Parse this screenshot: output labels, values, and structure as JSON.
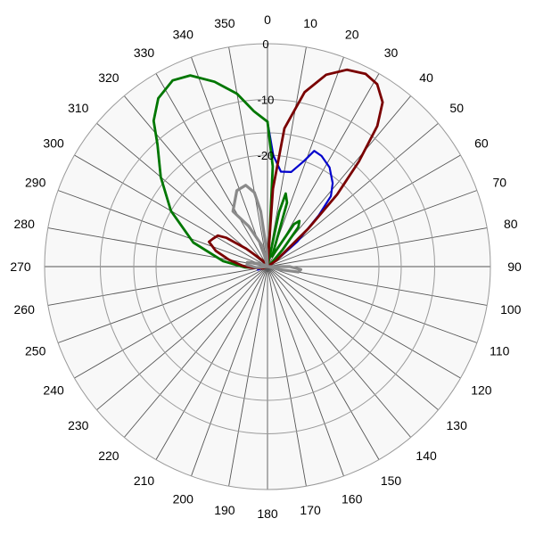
{
  "chart_data": {
    "type": "polar-line",
    "title": "",
    "angle_direction": "clockwise",
    "zero_at": "top",
    "angle_step": 10,
    "angle_labels": [
      "0",
      "10",
      "20",
      "30",
      "40",
      "50",
      "60",
      "70",
      "80",
      "90",
      "100",
      "110",
      "120",
      "130",
      "140",
      "150",
      "160",
      "170",
      "180",
      "190",
      "200",
      "210",
      "220",
      "230",
      "240",
      "250",
      "260",
      "270",
      "280",
      "290",
      "300",
      "310",
      "320",
      "330",
      "340",
      "350"
    ],
    "radial_axis": {
      "range": [
        -40,
        0
      ],
      "rings": [
        0,
        -10,
        -20
      ],
      "ring_labels": [
        "0",
        "-10",
        "-20"
      ],
      "label_angle": 0,
      "inner_boundary": -40
    },
    "grid": true,
    "background_color": "#f8f8f8",
    "series": [
      {
        "color": "#0000cc",
        "stroke_width": 2.2,
        "points": [
          [
            0,
            -14
          ],
          [
            3,
            -20
          ],
          [
            8,
            -22.8
          ],
          [
            14,
            -22.5
          ],
          [
            19,
            -20
          ],
          [
            22,
            -17.6
          ],
          [
            26,
            -17.9
          ],
          [
            32,
            -19
          ],
          [
            38,
            -21
          ],
          [
            42,
            -23
          ],
          [
            45,
            -27
          ],
          [
            50,
            -33
          ],
          [
            55,
            -38
          ],
          [
            60,
            -39.5
          ],
          [
            80,
            -40
          ],
          [
            180,
            -40
          ],
          [
            240,
            -40
          ],
          [
            252,
            -38.2
          ],
          [
            262,
            -38.5
          ],
          [
            268,
            -36
          ],
          [
            277,
            -32
          ],
          [
            288,
            -26
          ],
          [
            300,
            -20
          ],
          [
            310,
            -15
          ],
          [
            318,
            -10.5
          ],
          [
            322,
            -6.8
          ],
          [
            327,
            -4
          ],
          [
            333,
            -2.5
          ],
          [
            338,
            -3
          ],
          [
            344,
            -5.5
          ],
          [
            350,
            -8.5
          ],
          [
            355,
            -12
          ],
          [
            0,
            -14
          ]
        ]
      },
      {
        "color": "#007700",
        "stroke_width": 2.8,
        "points": [
          [
            0,
            -14
          ],
          [
            3,
            -22
          ],
          [
            4,
            -35
          ],
          [
            6,
            -40
          ],
          [
            12,
            -30
          ],
          [
            14,
            -26.5
          ],
          [
            17,
            -28
          ],
          [
            19,
            -35
          ],
          [
            24,
            -38
          ],
          [
            32,
            -31
          ],
          [
            35,
            -30
          ],
          [
            38,
            -31
          ],
          [
            42,
            -36
          ],
          [
            55,
            -39.5
          ],
          [
            80,
            -40
          ],
          [
            180,
            -40
          ],
          [
            240,
            -40
          ],
          [
            255,
            -39.5
          ],
          [
            262,
            -38.8
          ],
          [
            268,
            -36
          ],
          [
            277,
            -32
          ],
          [
            288,
            -26
          ],
          [
            300,
            -20
          ],
          [
            310,
            -15
          ],
          [
            318,
            -10.5
          ],
          [
            322,
            -6.8
          ],
          [
            327,
            -4
          ],
          [
            333,
            -2.5
          ],
          [
            338,
            -3
          ],
          [
            344,
            -5.5
          ],
          [
            350,
            -8.5
          ],
          [
            355,
            -12
          ],
          [
            0,
            -14
          ]
        ]
      },
      {
        "color": "#7a0000",
        "stroke_width": 2.8,
        "points": [
          [
            0,
            -40
          ],
          [
            4,
            -26
          ],
          [
            7,
            -15
          ],
          [
            12,
            -8
          ],
          [
            17,
            -4
          ],
          [
            22,
            -1.9
          ],
          [
            27,
            -1.2
          ],
          [
            31,
            -1.8
          ],
          [
            35,
            -4
          ],
          [
            38,
            -8
          ],
          [
            41,
            -15
          ],
          [
            44,
            -22
          ],
          [
            47,
            -30
          ],
          [
            55,
            -38
          ],
          [
            80,
            -40
          ],
          [
            180,
            -40
          ],
          [
            240,
            -40
          ],
          [
            250,
            -39
          ],
          [
            255,
            -38.8
          ],
          [
            262,
            -38.2
          ],
          [
            267,
            -36.8
          ],
          [
            272,
            -35.5
          ],
          [
            280,
            -33
          ],
          [
            287,
            -30.3
          ],
          [
            293,
            -28.6
          ],
          [
            297,
            -29
          ],
          [
            302,
            -29.5
          ],
          [
            305,
            -31
          ],
          [
            310,
            -35
          ],
          [
            320,
            -38.5
          ],
          [
            340,
            -39.6
          ],
          [
            0,
            -40
          ]
        ]
      },
      {
        "color": "#8a8a8a",
        "stroke_width": 3.2,
        "points": [
          [
            0,
            -40
          ],
          [
            345,
            -36
          ],
          [
            335,
            -32
          ],
          [
            328,
            -28.3
          ],
          [
            338,
            -25.3
          ],
          [
            345,
            -24.9
          ],
          [
            350,
            -26.5
          ],
          [
            353,
            -30
          ],
          [
            357,
            -37
          ],
          [
            0,
            -40
          ],
          [
            80,
            -40
          ],
          [
            90,
            -36
          ],
          [
            95,
            -34
          ],
          [
            100,
            -34.4
          ],
          [
            104,
            -37.8
          ],
          [
            180,
            -40
          ],
          [
            240,
            -40
          ],
          [
            265,
            -38
          ],
          [
            275,
            -36.3
          ],
          [
            282,
            -36.3
          ],
          [
            288,
            -38.2
          ],
          [
            300,
            -39.5
          ],
          [
            0,
            -40
          ]
        ]
      }
    ]
  }
}
